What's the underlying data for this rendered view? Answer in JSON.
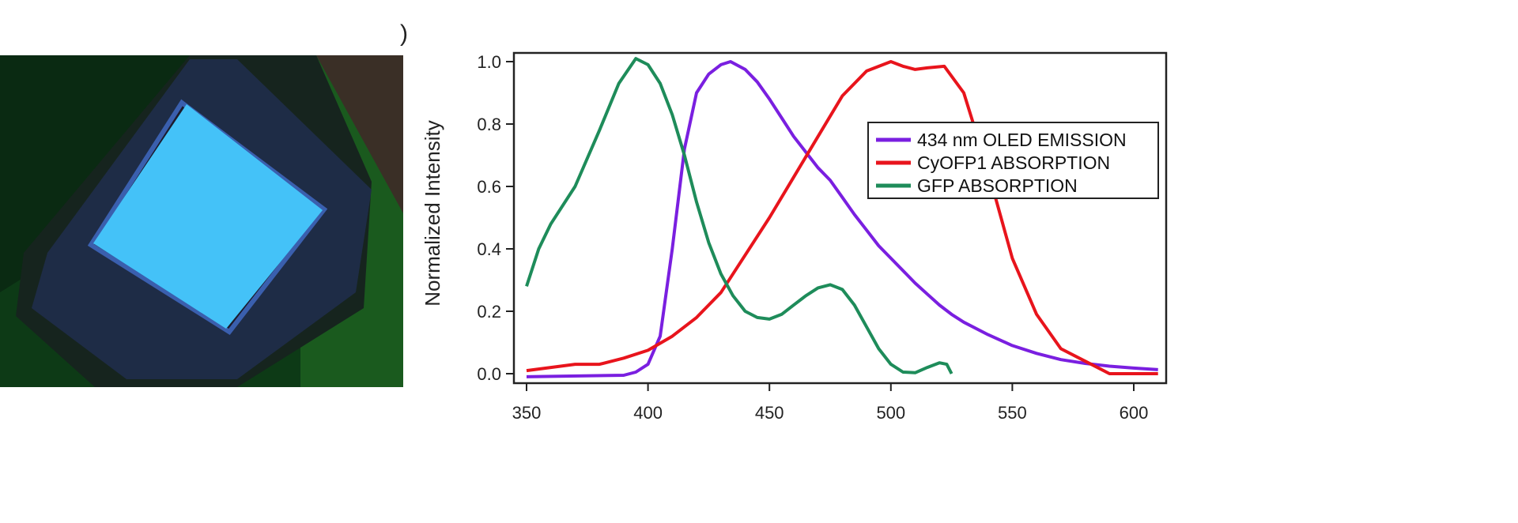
{
  "panel_mark": ")",
  "chart_data": {
    "type": "line",
    "title": "",
    "xlabel": "",
    "ylabel": "Normalized Intensity",
    "xlim": [
      348,
      612
    ],
    "ylim": [
      -0.03,
      1.03
    ],
    "xticks": [
      "350",
      "400",
      "450",
      "500",
      "550",
      "600"
    ],
    "yticks": [
      "0.0",
      "0.2",
      "0.4",
      "0.6",
      "0.8",
      "1.0"
    ],
    "legend_position": "right-center",
    "grid": false,
    "series": [
      {
        "name": "434 nm OLED EMISSION",
        "color": "#7a1fe0",
        "x": [
          350,
          390,
          395,
          400,
          405,
          410,
          415,
          420,
          425,
          430,
          434,
          440,
          445,
          450,
          455,
          460,
          465,
          470,
          475,
          480,
          485,
          490,
          495,
          500,
          505,
          510,
          515,
          520,
          525,
          530,
          540,
          550,
          560,
          570,
          580,
          590,
          600,
          610
        ],
        "y": [
          -0.01,
          -0.005,
          0.005,
          0.03,
          0.12,
          0.4,
          0.72,
          0.9,
          0.96,
          0.99,
          1.0,
          0.975,
          0.935,
          0.88,
          0.82,
          0.76,
          0.71,
          0.66,
          0.62,
          0.565,
          0.51,
          0.46,
          0.41,
          0.37,
          0.33,
          0.29,
          0.255,
          0.22,
          0.19,
          0.165,
          0.125,
          0.09,
          0.065,
          0.045,
          0.033,
          0.024,
          0.018,
          0.013
        ]
      },
      {
        "name": "CyOFP1 ABSORPTION",
        "color": "#e8141c",
        "x": [
          350,
          360,
          370,
          380,
          390,
          400,
          410,
          420,
          430,
          440,
          450,
          460,
          470,
          480,
          490,
          500,
          505,
          510,
          515,
          522,
          530,
          540,
          550,
          560,
          570,
          580,
          590,
          600,
          610
        ],
        "y": [
          0.01,
          0.02,
          0.03,
          0.03,
          0.05,
          0.075,
          0.12,
          0.18,
          0.26,
          0.38,
          0.5,
          0.63,
          0.76,
          0.89,
          0.97,
          1.0,
          0.985,
          0.975,
          0.98,
          0.985,
          0.9,
          0.65,
          0.37,
          0.19,
          0.08,
          0.04,
          0.0,
          0.0,
          0.0
        ]
      },
      {
        "name": "GFP ABSORPTION",
        "color": "#1e8c5a",
        "x": [
          350,
          355,
          360,
          370,
          380,
          388,
          395,
          400,
          405,
          410,
          415,
          420,
          425,
          430,
          435,
          440,
          445,
          450,
          455,
          460,
          465,
          470,
          475,
          480,
          485,
          490,
          495,
          500,
          505,
          510,
          515,
          520,
          523,
          525
        ],
        "y": [
          0.28,
          0.4,
          0.48,
          0.6,
          0.78,
          0.93,
          1.01,
          0.99,
          0.93,
          0.83,
          0.7,
          0.55,
          0.42,
          0.32,
          0.25,
          0.2,
          0.18,
          0.175,
          0.19,
          0.22,
          0.25,
          0.275,
          0.285,
          0.27,
          0.22,
          0.15,
          0.08,
          0.03,
          0.005,
          0.003,
          0.02,
          0.035,
          0.03,
          0.0
        ]
      }
    ]
  }
}
